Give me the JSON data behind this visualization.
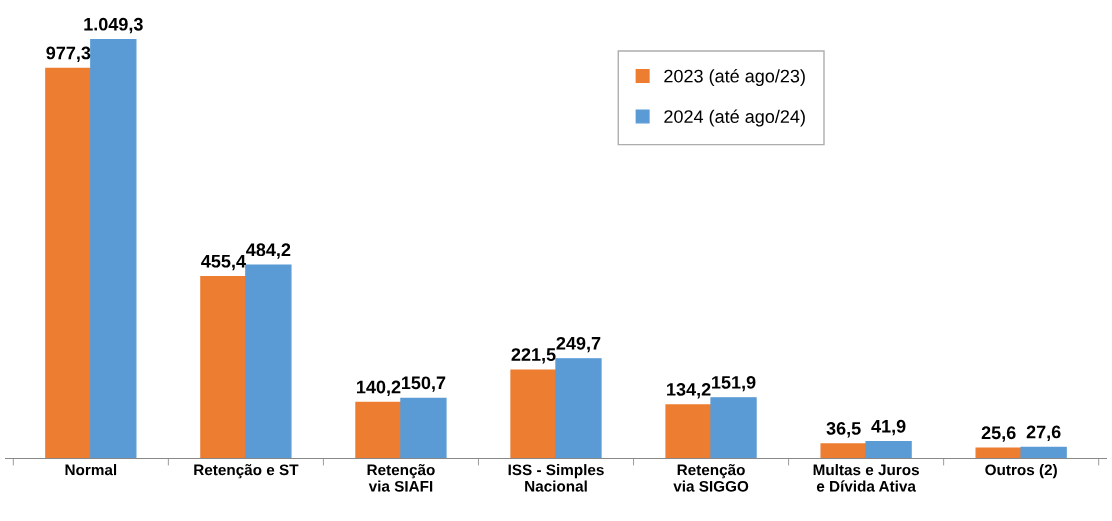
{
  "chart_data": {
    "type": "bar",
    "categories": [
      "Normal",
      "Retenção e ST",
      "Retenção via SIAFI",
      "ISS - Simples Nacional",
      "Retenção via SIGGO",
      "Multas e Juros e Dívida Ativa",
      "Outros (2)"
    ],
    "series": [
      {
        "name": "2023 (até ago/23)",
        "color": "#ed7d31",
        "values": [
          977.3,
          455.4,
          140.2,
          221.5,
          134.2,
          36.5,
          25.6
        ],
        "value_labels": [
          "977,3",
          "455,4",
          "140,2",
          "221,5",
          "134,2",
          "36,5",
          "25,6"
        ]
      },
      {
        "name": "2024 (até ago/24)",
        "color": "#5b9bd5",
        "values": [
          1049.3,
          484.2,
          150.7,
          249.7,
          151.9,
          41.9,
          27.6
        ],
        "value_labels": [
          "1.049,3",
          "484,2",
          "150,7",
          "249,7",
          "151,9",
          "41,9",
          "27,6"
        ]
      }
    ],
    "legend": "top right",
    "grid": false
  }
}
